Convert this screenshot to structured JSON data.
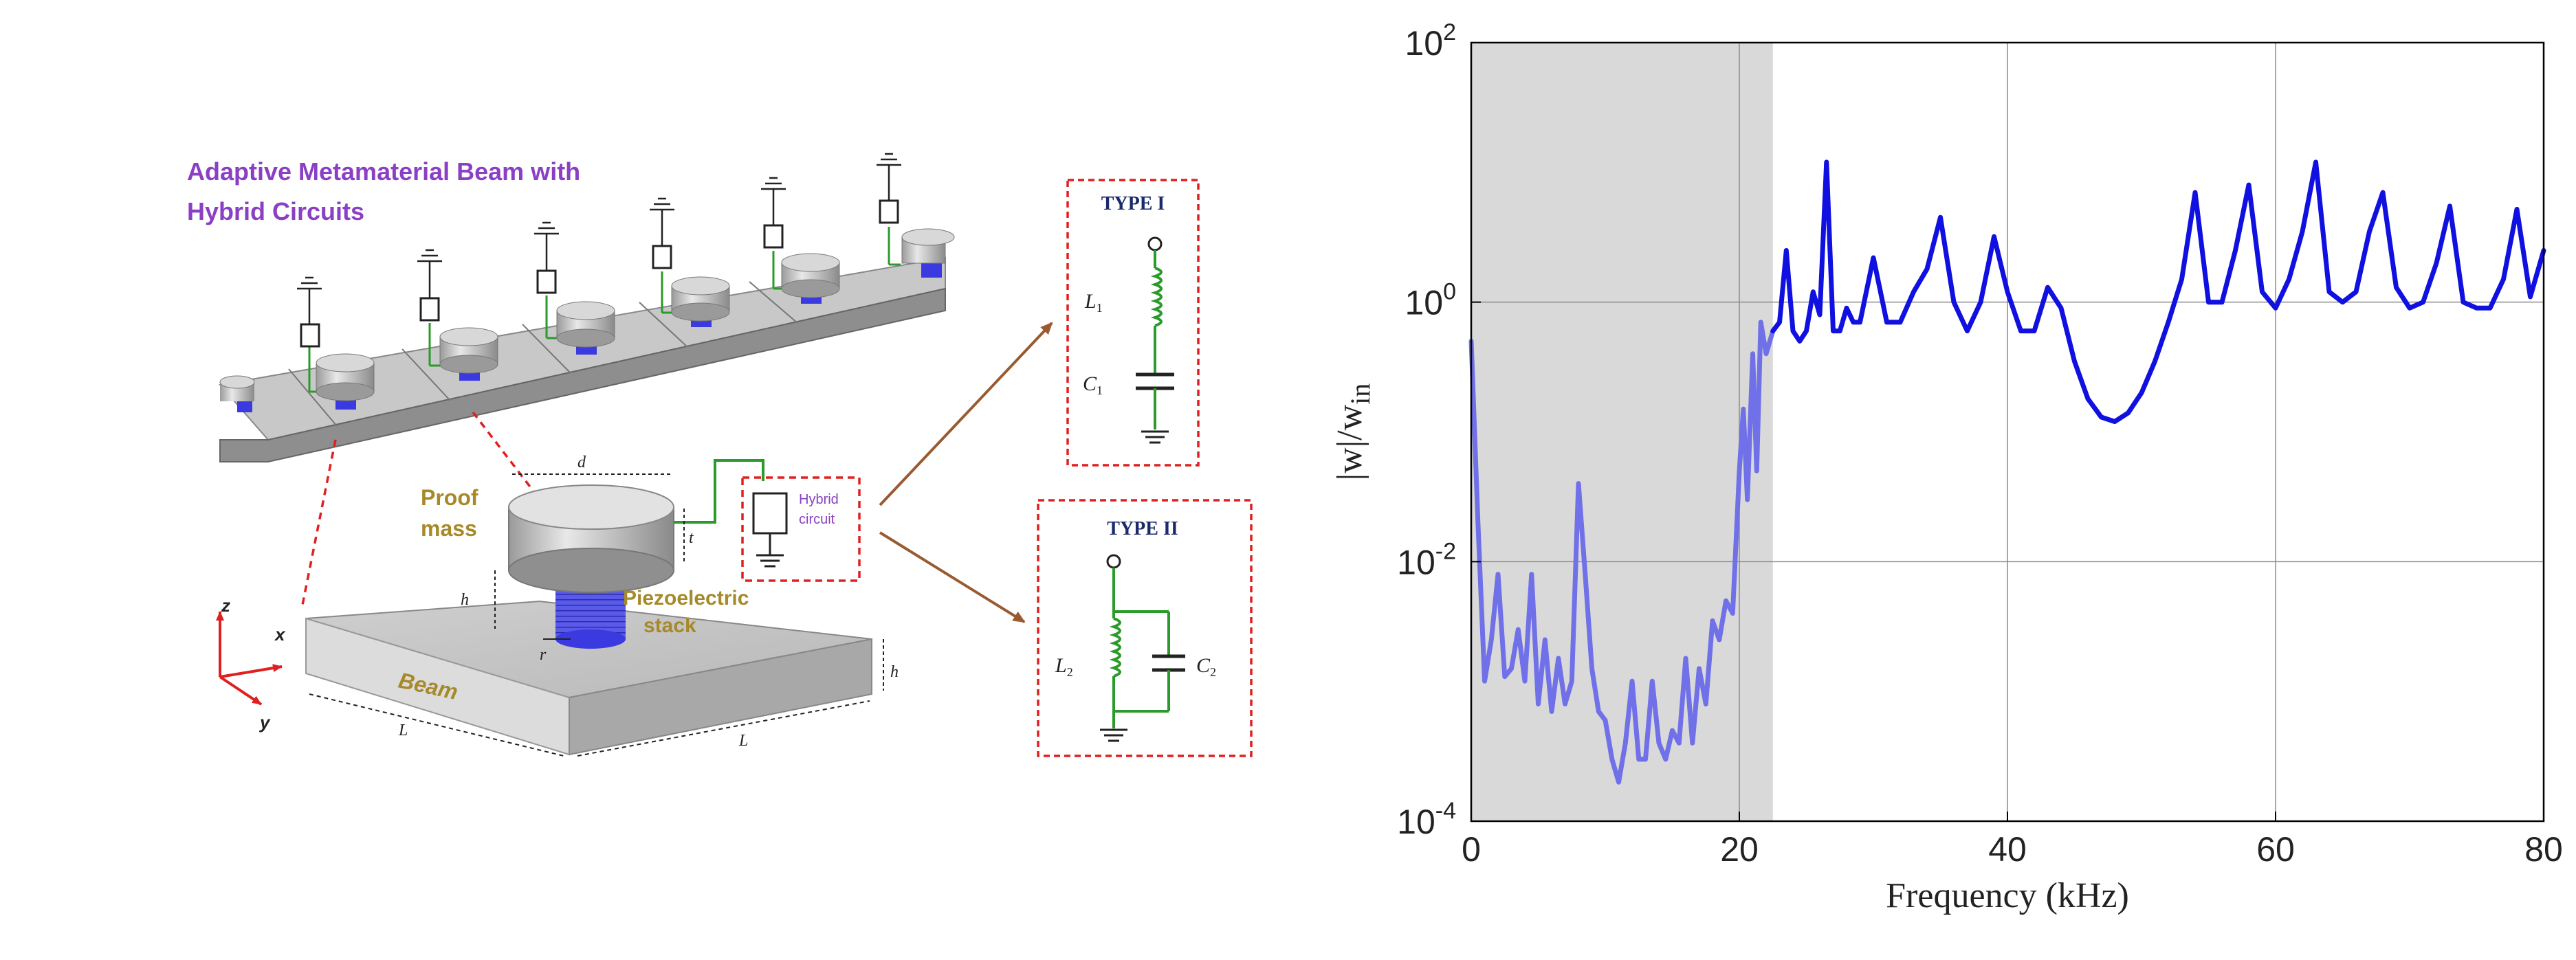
{
  "diagram": {
    "title_line1": "Adaptive Metamaterial Beam with",
    "title_line2": "Hybrid Circuits",
    "proof_mass_line1": "Proof",
    "proof_mass_line2": "mass",
    "piezo_line1": "Piezoelectric",
    "piezo_line2": "stack",
    "beam_label": "Beam",
    "hybrid_line1": "Hybrid",
    "hybrid_line2": "circuit",
    "axis_z": "z",
    "axis_x": "x",
    "axis_y": "y",
    "type1": {
      "title": "TYPE I",
      "inductor": "L",
      "inductor_sub": "1",
      "capacitor": "C",
      "capacitor_sub": "1"
    },
    "type2": {
      "title": "TYPE II",
      "inductor": "L",
      "inductor_sub": "2",
      "capacitor": "C",
      "capacitor_sub": "2"
    },
    "colors": {
      "title_purple": "#8a3fc4",
      "label_gold": "#a68a2a",
      "dashed_red": "#e02020",
      "arrow_brown": "#9a5a30",
      "circuit_green": "#2a9a2a",
      "type_title_navy": "#1a2a6a",
      "piezo_blue": "#3a3ae0"
    }
  },
  "chart_data": {
    "type": "line",
    "title": "",
    "xlabel": "Frequency (kHz)",
    "ylabel": "|w|/w",
    "ylabel_sub": "in",
    "xlim": [
      0,
      80
    ],
    "ylim": [
      0.0001,
      100
    ],
    "yscale": "log",
    "grid": true,
    "x_ticks": [
      "0",
      "20",
      "40",
      "60",
      "80"
    ],
    "y_ticks": [
      {
        "base": "10",
        "exp": "-4",
        "value": 0.0001
      },
      {
        "base": "10",
        "exp": "-2",
        "value": 0.01
      },
      {
        "base": "10",
        "exp": "0",
        "value": 1
      },
      {
        "base": "10",
        "exp": "2",
        "value": 100
      }
    ],
    "shaded_band": {
      "x_start": 0,
      "x_end": 22.5,
      "color": "#d9d9d9"
    },
    "series": [
      {
        "color": "#7070e8",
        "x": [
          0,
          0.5,
          1,
          1.5,
          2,
          2.5,
          3,
          3.5,
          4,
          4.5,
          5,
          5.5,
          6,
          6.5,
          7,
          7.5,
          8,
          8.5,
          9,
          9.5,
          10,
          10.5,
          11,
          11.5,
          12,
          12.5,
          13,
          13.5,
          14,
          14.5,
          15,
          15.5,
          16,
          16.5,
          17,
          17.5,
          18,
          18.5,
          19,
          19.5,
          20,
          20.3,
          20.6,
          21,
          21.3,
          21.6,
          22,
          22.5
        ],
        "y": [
          0.5,
          0.02,
          0.0012,
          0.0025,
          0.008,
          0.0013,
          0.0015,
          0.003,
          0.0012,
          0.008,
          0.0008,
          0.0025,
          0.0007,
          0.0018,
          0.0008,
          0.0012,
          0.04,
          0.008,
          0.0015,
          0.0007,
          0.0006,
          0.0003,
          0.0002,
          0.0004,
          0.0012,
          0.0003,
          0.0003,
          0.0012,
          0.0004,
          0.0003,
          0.0005,
          0.0004,
          0.0018,
          0.0004,
          0.0015,
          0.0008,
          0.0035,
          0.0025,
          0.005,
          0.004,
          0.05,
          0.15,
          0.03,
          0.4,
          0.05,
          0.7,
          0.4,
          0.6
        ]
      },
      {
        "color": "#1010e0",
        "x": [
          22.5,
          23,
          23.5,
          24,
          24.5,
          25,
          25.5,
          26,
          26.5,
          27,
          27.5,
          28,
          28.5,
          29,
          30,
          31,
          32,
          33,
          34,
          35,
          36,
          37,
          38,
          39,
          40,
          41,
          42,
          43,
          44,
          45,
          46,
          47,
          48,
          49,
          50,
          51,
          52,
          53,
          54,
          55,
          56,
          57,
          58,
          59,
          60,
          61,
          62,
          63,
          64,
          65,
          66,
          67,
          68,
          69,
          70,
          71,
          72,
          73,
          74,
          75,
          76,
          77,
          78,
          79,
          80
        ],
        "y": [
          0.6,
          0.7,
          2.5,
          0.6,
          0.5,
          0.6,
          1.2,
          0.8,
          12,
          0.6,
          0.6,
          0.9,
          0.7,
          0.7,
          2.2,
          0.7,
          0.7,
          1.2,
          1.8,
          4.5,
          1.0,
          0.6,
          1.0,
          3.2,
          1.2,
          0.6,
          0.6,
          1.3,
          0.9,
          0.35,
          0.18,
          0.13,
          0.12,
          0.14,
          0.2,
          0.35,
          0.7,
          1.5,
          7,
          1.0,
          1.0,
          2.5,
          8,
          1.2,
          0.9,
          1.5,
          3.5,
          12,
          1.2,
          1.0,
          1.2,
          3.5,
          7,
          1.3,
          0.9,
          1.0,
          2.0,
          5.5,
          1.0,
          0.9,
          0.9,
          1.5,
          5.2,
          1.1,
          2.5
        ]
      }
    ]
  }
}
